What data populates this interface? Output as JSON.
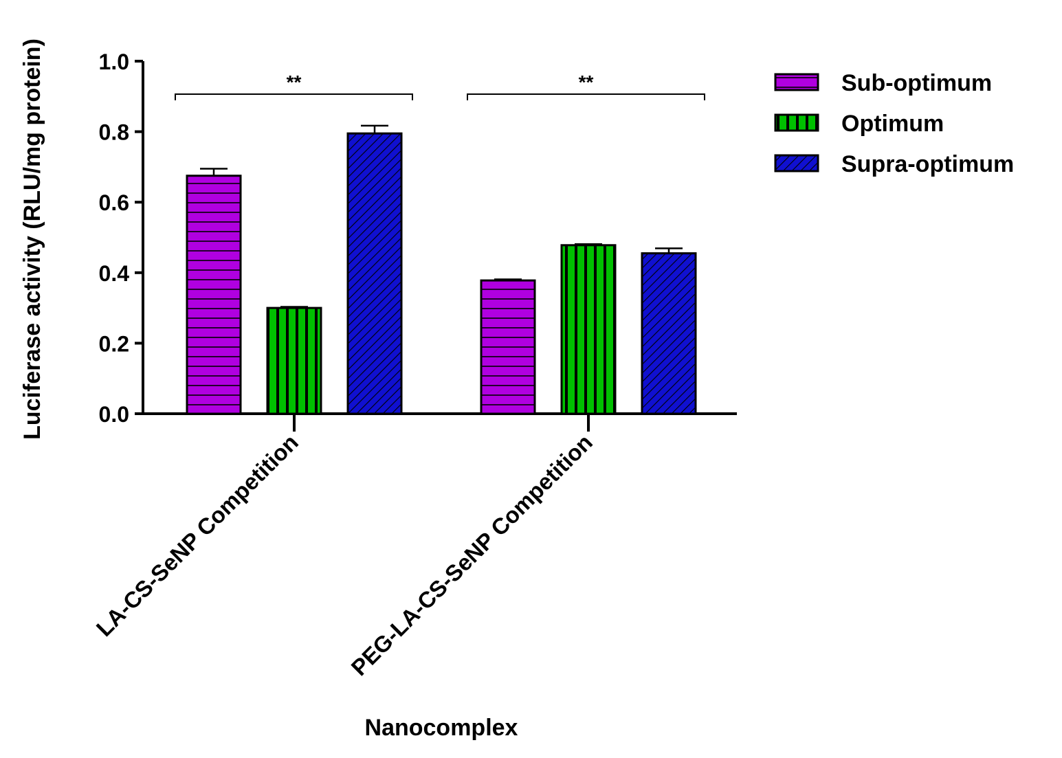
{
  "chart_data": {
    "type": "bar",
    "title": "",
    "xlabel": "Nanocomplex",
    "ylabel": "Luciferase activity (RLU/mg protein)",
    "ylim": [
      0,
      1.0
    ],
    "yticks": [
      0.0,
      0.2,
      0.4,
      0.6,
      0.8,
      1.0
    ],
    "ytick_labels": [
      "0.0",
      "0.2",
      "0.4",
      "0.6",
      "0.8",
      "1.0"
    ],
    "categories": [
      "LA-CS-SeNP Competition",
      "PEG-LA-CS-SeNP Competition"
    ],
    "series": [
      {
        "name": "Sub-optimum",
        "values": [
          0.675,
          0.378
        ],
        "errors": [
          0.02,
          0.003
        ],
        "color": "#b000e0",
        "pattern": "horizontal-lines"
      },
      {
        "name": "Optimum",
        "values": [
          0.3,
          0.478
        ],
        "errors": [
          0.003,
          0.003
        ],
        "color": "#00c000",
        "pattern": "vertical-lines"
      },
      {
        "name": "Supra-optimum",
        "values": [
          0.795,
          0.455
        ],
        "errors": [
          0.022,
          0.014
        ],
        "color": "#1010d0",
        "pattern": "diagonal-lines"
      }
    ],
    "annotations": [
      {
        "text": "**",
        "category": "LA-CS-SeNP Competition"
      },
      {
        "text": "**",
        "category": "PEG-LA-CS-SeNP Competition"
      }
    ],
    "legend_position": "top-right",
    "grid": false
  }
}
